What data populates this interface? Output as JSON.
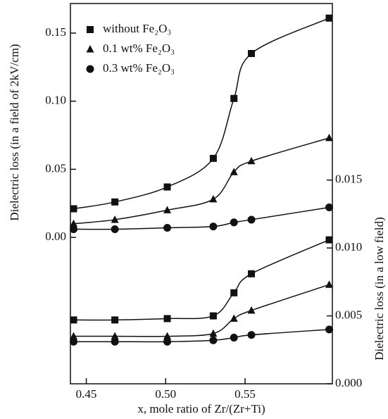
{
  "chart_data": {
    "type": "line",
    "x_label": "x, mole ratio of Zr/(Zr+Ti)",
    "y_label": "Dielectric loss (in a field of 2kV/cm)",
    "y2_label": "Dielectric loss (in a low field)",
    "x": [
      0.442,
      0.468,
      0.501,
      0.53,
      0.543,
      0.554,
      0.603
    ],
    "xlim": [
      0.44,
      0.605
    ],
    "xticks": [
      {
        "value": 0.45,
        "label": "0.45"
      },
      {
        "value": 0.5,
        "label": "0.50"
      },
      {
        "value": 0.55,
        "label": "0.55"
      }
    ],
    "ylim": [
      -0.1075,
      0.1717
    ],
    "yticks": [
      {
        "value": 0,
        "label": "0.00"
      },
      0.05,
      {
        "value": 0.1,
        "label": "0.10"
      },
      0.15
    ],
    "y2lim": [
      0,
      0.028
    ],
    "y2ticks": [
      {
        "value": 0,
        "label": "0.000"
      },
      {
        "value": 0.005,
        "label": "0.005"
      },
      {
        "value": 0.01,
        "label": "0.010"
      },
      {
        "value": 0.015,
        "label": "0.015"
      }
    ],
    "legend": "upper left",
    "series": [
      {
        "name": "without Fe₂O₃",
        "marker": "square",
        "color": "#111111",
        "values": [
          0.021,
          0.026,
          0.037,
          0.058,
          0.102,
          0.135,
          0.161
        ]
      },
      {
        "name": "0.1 wt% Fe₂O₃",
        "marker": "triangle",
        "color": "#111111",
        "values": [
          0.01,
          0.013,
          0.02,
          0.028,
          0.048,
          0.056,
          0.073
        ]
      },
      {
        "name": "0.3 wt% Fe₂O₃",
        "marker": "circle",
        "color": "#111111",
        "values": [
          0.006,
          0.006,
          0.007,
          0.008,
          0.011,
          0.013,
          0.022
        ]
      },
      {
        "axis": "y2",
        "marker": "square",
        "color": "#111111",
        "values": [
          0.0047,
          0.0047,
          0.0048,
          0.005,
          0.0067,
          0.0081,
          0.0106
        ]
      },
      {
        "axis": "y2",
        "marker": "triangle",
        "color": "#111111",
        "values": [
          0.0035,
          0.0035,
          0.0035,
          0.0037,
          0.0048,
          0.0054,
          0.0073
        ]
      },
      {
        "axis": "y2",
        "marker": "circle",
        "color": "#111111",
        "values": [
          0.0031,
          0.0031,
          0.0031,
          0.0032,
          0.0034,
          0.0036,
          0.004
        ]
      }
    ]
  }
}
